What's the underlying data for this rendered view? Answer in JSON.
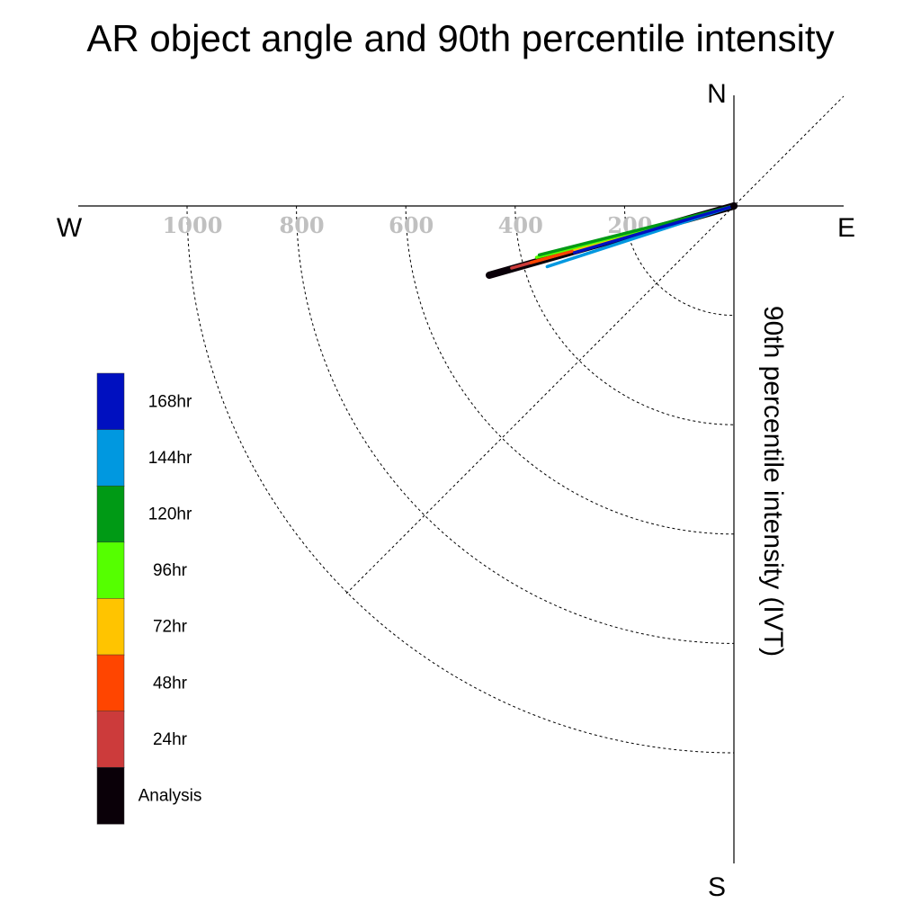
{
  "chart_data": {
    "type": "polar-vector",
    "title": "AR object angle and 90th percentile intensity",
    "ylabel": "90th percentile intensity (IVT)",
    "compass": {
      "north": "N",
      "south": "S",
      "east": "E",
      "west": "W"
    },
    "radial_ticks": [
      "200",
      "400",
      "600",
      "800",
      "1000"
    ],
    "radial_tick_values": [
      200,
      400,
      600,
      800,
      1000
    ],
    "radial_max": 1000,
    "series": [
      {
        "name": "Analysis",
        "color": "#0a0008",
        "angle_deg": 195.8,
        "intensity": 465
      },
      {
        "name": "24hr",
        "color": "#cc3b3b",
        "angle_deg": 195.6,
        "intensity": 422
      },
      {
        "name": "48hr",
        "color": "#ff4500",
        "angle_deg": 195.6,
        "intensity": 385
      },
      {
        "name": "72hr",
        "color": "#ffc400",
        "angle_deg": 195.3,
        "intensity": 302
      },
      {
        "name": "96hr",
        "color": "#55ff00",
        "angle_deg": 194.6,
        "intensity": 373
      },
      {
        "name": "120hr",
        "color": "#009a15",
        "angle_deg": 194.1,
        "intensity": 367
      },
      {
        "name": "144hr",
        "color": "#0098e0",
        "angle_deg": 198.0,
        "intensity": 359
      },
      {
        "name": "168hr",
        "color": "#0010c0",
        "angle_deg": 196.3,
        "intensity": 304
      }
    ],
    "legend": [
      "168hr",
      "144hr",
      "120hr",
      "96hr",
      "72hr",
      "48hr",
      "24hr",
      "Analysis"
    ],
    "grid": true,
    "legend_placement": "bottom-left"
  }
}
